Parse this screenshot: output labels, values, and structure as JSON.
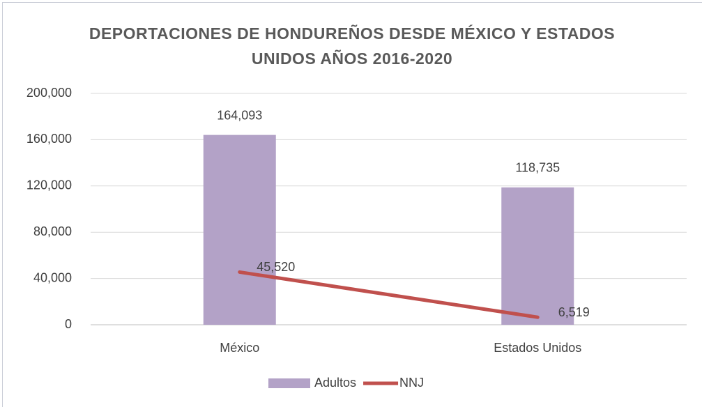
{
  "chart_data": {
    "type": "bar",
    "title": "DEPORTACIONES DE HONDUREÑOS DESDE MÉXICO Y ESTADOS UNIDOS AÑOS 2016-2020",
    "categories": [
      "México",
      "Estados Unidos"
    ],
    "series": [
      {
        "name": "Adultos",
        "type": "bar",
        "color": "#b3a2c7",
        "values": [
          164093,
          118735
        ],
        "value_labels": [
          "164,093",
          "118,735"
        ]
      },
      {
        "name": "NNJ",
        "type": "line",
        "color": "#c0504d",
        "values": [
          45520,
          6519
        ],
        "value_labels": [
          "45,520",
          "6,519"
        ]
      }
    ],
    "ylim": [
      0,
      200000
    ],
    "yticks": [
      0,
      {
        "value": 40000,
        "label": "40,000"
      },
      {
        "value": 80000,
        "label": "80,000"
      },
      {
        "value": 120000,
        "label": "120,000"
      },
      {
        "value": 160000,
        "label": "160,000"
      },
      {
        "value": 200000,
        "label": "200,000"
      }
    ],
    "grid": true,
    "legend": "bottom"
  }
}
